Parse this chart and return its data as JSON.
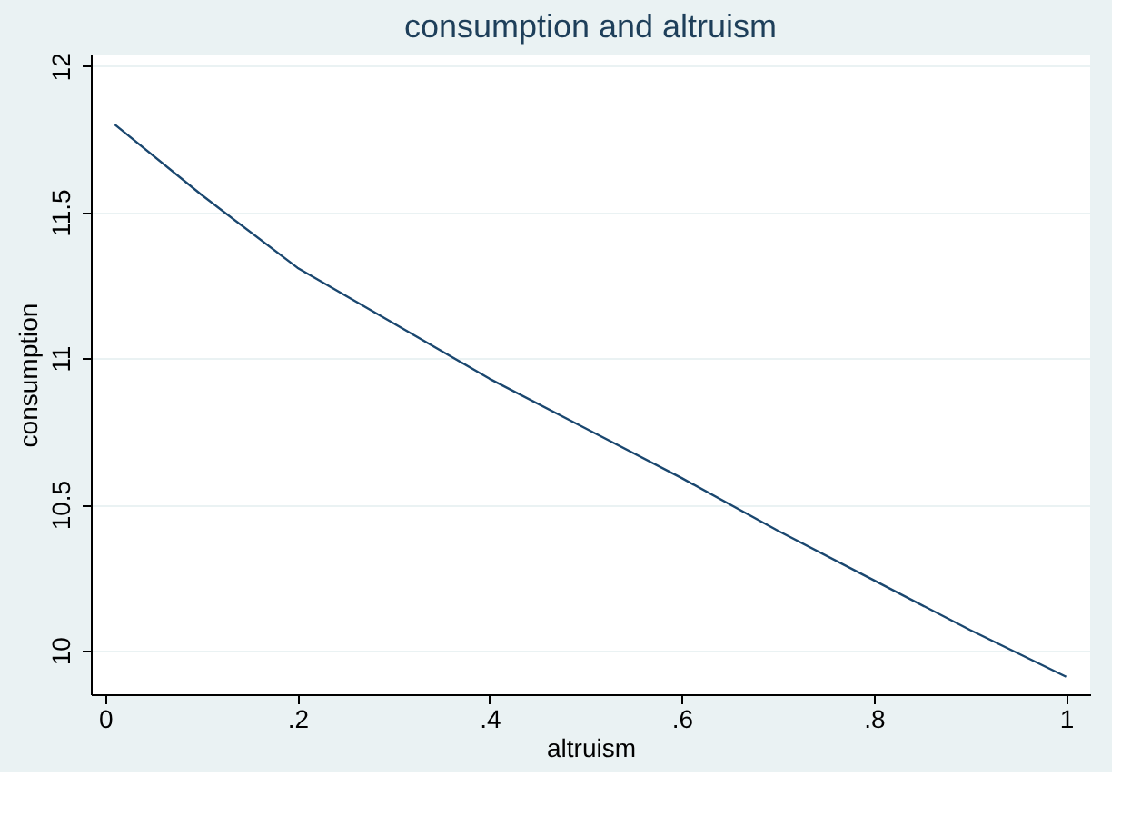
{
  "chart_data": {
    "type": "line",
    "title": "consumption and altruism",
    "xlabel": "altruism",
    "ylabel": "consumption",
    "x": [
      0.01,
      0.1,
      0.2,
      0.3,
      0.4,
      0.5,
      0.6,
      0.7,
      0.8,
      0.9,
      1.0
    ],
    "series": [
      {
        "color": "#1a476f",
        "values": [
          11.8,
          11.56,
          11.31,
          11.12,
          10.93,
          10.76,
          10.59,
          10.41,
          10.24,
          10.07,
          9.91
        ]
      }
    ],
    "xlim": [
      -0.015,
      1.025
    ],
    "ylim": [
      9.85,
      12.04
    ],
    "xticks": [
      0,
      {
        "value": 0.2,
        "label": ".2"
      },
      {
        "value": 0.4,
        "label": ".4"
      },
      {
        "value": 0.6,
        "label": ".6"
      },
      {
        "value": 0.8,
        "label": ".8"
      },
      1
    ],
    "yticks": [
      10,
      10.5,
      11,
      11.5,
      12
    ],
    "grid": "y",
    "marker": "none",
    "line_style": "solid"
  }
}
